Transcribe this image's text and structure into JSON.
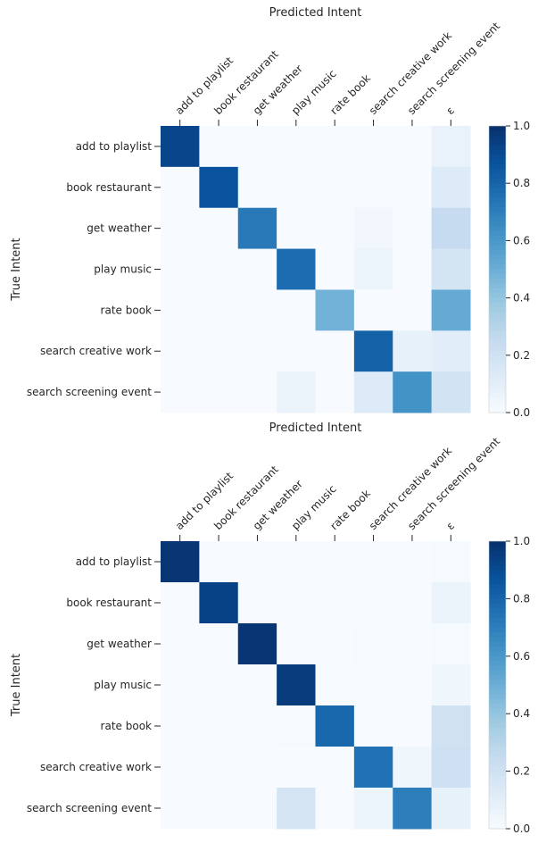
{
  "chart_data": [
    {
      "type": "heatmap",
      "title": "Predicted Intent",
      "xlabel": "Predicted Intent",
      "ylabel": "True Intent",
      "x_categories": [
        "add to playlist",
        "book restaurant",
        "get weather",
        "play music",
        "rate book",
        "search creative work",
        "search screening event",
        "ε"
      ],
      "y_categories": [
        "add to playlist",
        "book restaurant",
        "get weather",
        "play music",
        "rate book",
        "search creative work",
        "search screening event"
      ],
      "values": [
        [
          0.92,
          0.0,
          0.0,
          0.0,
          0.0,
          0.0,
          0.0,
          0.07
        ],
        [
          0.0,
          0.87,
          0.0,
          0.0,
          0.0,
          0.0,
          0.0,
          0.13
        ],
        [
          0.0,
          0.0,
          0.72,
          0.0,
          0.0,
          0.03,
          0.0,
          0.25
        ],
        [
          0.0,
          0.0,
          0.0,
          0.77,
          0.0,
          0.05,
          0.0,
          0.18
        ],
        [
          0.0,
          0.0,
          0.0,
          0.0,
          0.48,
          0.0,
          0.0,
          0.52
        ],
        [
          0.0,
          0.0,
          0.0,
          0.0,
          0.0,
          0.81,
          0.08,
          0.11
        ],
        [
          0.0,
          0.0,
          0.0,
          0.06,
          0.0,
          0.13,
          0.62,
          0.19
        ]
      ],
      "colorbar": {
        "min": 0.0,
        "max": 1.0,
        "ticks": [
          "0.0",
          "0.2",
          "0.4",
          "0.6",
          "0.8",
          "1.0"
        ]
      },
      "colormap": "Blues"
    },
    {
      "type": "heatmap",
      "title": "Predicted Intent",
      "xlabel": "Predicted Intent",
      "ylabel": "True Intent",
      "x_categories": [
        "add to playlist",
        "book restaurant",
        "get weather",
        "play music",
        "rate book",
        "search creative work",
        "search screening event",
        "ε"
      ],
      "y_categories": [
        "add to playlist",
        "book restaurant",
        "get weather",
        "play music",
        "rate book",
        "search creative work",
        "search screening event"
      ],
      "values": [
        [
          0.98,
          0.0,
          0.0,
          0.0,
          0.0,
          0.0,
          0.0,
          0.01
        ],
        [
          0.0,
          0.93,
          0.0,
          0.0,
          0.0,
          0.0,
          0.0,
          0.06
        ],
        [
          0.0,
          0.0,
          0.98,
          0.0,
          0.0,
          0.01,
          0.0,
          0.01
        ],
        [
          0.0,
          0.0,
          0.0,
          0.96,
          0.0,
          0.0,
          0.0,
          0.04
        ],
        [
          0.0,
          0.0,
          0.0,
          0.01,
          0.79,
          0.0,
          0.0,
          0.2
        ],
        [
          0.0,
          0.0,
          0.0,
          0.0,
          0.0,
          0.75,
          0.04,
          0.21
        ],
        [
          0.0,
          0.0,
          0.0,
          0.17,
          0.0,
          0.05,
          0.7,
          0.08
        ]
      ],
      "colorbar": {
        "min": 0.0,
        "max": 1.0,
        "ticks": [
          "0.0",
          "0.2",
          "0.4",
          "0.6",
          "0.8",
          "1.0"
        ]
      },
      "colormap": "Blues"
    }
  ]
}
